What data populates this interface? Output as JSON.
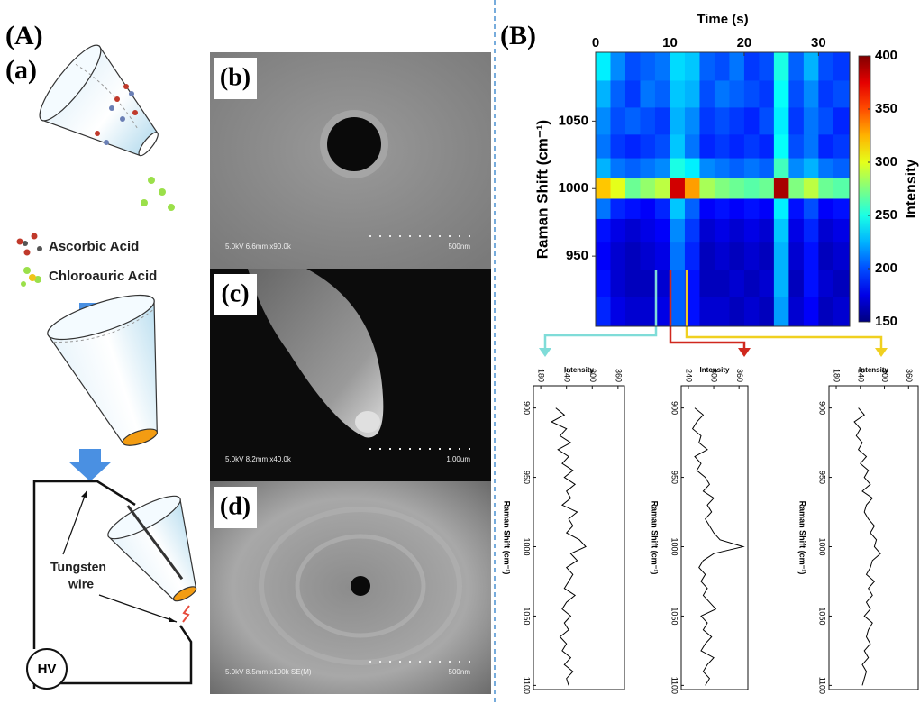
{
  "panel_a": {
    "label": "(A)",
    "sub_label": "(a)",
    "ascorbic": "Ascorbic Acid",
    "chloroauric": "Chloroauric Acid",
    "tungsten": "Tungsten",
    "wire": "wire",
    "hv": "HV"
  },
  "sem": [
    {
      "label": "(b)",
      "caption": "5.0kV 6.6mm x90.0k",
      "scale": "500nm"
    },
    {
      "label": "(c)",
      "caption": "5.0kV 8.2mm x40.0k",
      "scale": "1.00um"
    },
    {
      "label": "(d)",
      "caption": "5.0kV 8.5mm x100k SE(M)",
      "scale": "500nm"
    }
  ],
  "panel_b": {
    "label": "(B)"
  },
  "chart_data": [
    {
      "type": "heatmap",
      "x_label": "Time (s)",
      "y_label": "Raman Shift (cm⁻¹)",
      "colorbar_label": "Intensity",
      "colormap": "jet",
      "x": [
        1,
        3,
        5,
        7,
        9,
        11,
        13,
        15,
        17,
        19,
        21,
        23,
        25,
        27,
        29,
        31,
        33
      ],
      "y": [
        1090,
        1070,
        1050,
        1030,
        1015,
        1000,
        985,
        970,
        950,
        930,
        910
      ],
      "z": [
        [
          240,
          215,
          200,
          205,
          210,
          235,
          230,
          205,
          200,
          210,
          195,
          200,
          250,
          205,
          225,
          200,
          195
        ],
        [
          225,
          205,
          195,
          210,
          205,
          230,
          225,
          200,
          210,
          205,
          200,
          195,
          245,
          200,
          215,
          195,
          200
        ],
        [
          215,
          200,
          205,
          200,
          195,
          225,
          215,
          195,
          200,
          195,
          190,
          200,
          240,
          195,
          210,
          200,
          190
        ],
        [
          210,
          195,
          190,
          195,
          200,
          230,
          210,
          190,
          195,
          190,
          195,
          190,
          245,
          200,
          210,
          190,
          195
        ],
        [
          225,
          210,
          205,
          210,
          215,
          250,
          240,
          215,
          210,
          205,
          210,
          205,
          260,
          215,
          225,
          210,
          205
        ],
        [
          320,
          300,
          270,
          280,
          290,
          380,
          330,
          285,
          275,
          270,
          265,
          270,
          390,
          275,
          290,
          270,
          265
        ],
        [
          210,
          190,
          185,
          180,
          190,
          230,
          205,
          180,
          185,
          180,
          185,
          180,
          240,
          185,
          200,
          180,
          185
        ],
        [
          185,
          175,
          170,
          175,
          180,
          215,
          195,
          170,
          175,
          170,
          175,
          170,
          230,
          175,
          190,
          170,
          175
        ],
        [
          180,
          170,
          165,
          170,
          175,
          210,
          190,
          165,
          170,
          165,
          170,
          165,
          225,
          170,
          185,
          165,
          170
        ],
        [
          185,
          170,
          165,
          165,
          170,
          205,
          185,
          165,
          165,
          170,
          165,
          170,
          225,
          165,
          185,
          170,
          165
        ],
        [
          190,
          175,
          170,
          170,
          175,
          205,
          185,
          170,
          170,
          165,
          170,
          165,
          220,
          170,
          180,
          165,
          170
        ]
      ],
      "xlim": [
        0,
        34.2
      ],
      "ylim": [
        898,
        1101
      ],
      "xticks": [
        0,
        10,
        20,
        30
      ],
      "yticks": [
        950,
        1000,
        1050
      ],
      "zlim": [
        150,
        400
      ],
      "zticks": [
        150,
        200,
        250,
        300,
        350,
        400
      ]
    },
    {
      "type": "line",
      "x_label": "Intensity",
      "y_label": "Raman Shift (cm⁻¹)",
      "y": [
        900,
        905,
        910,
        915,
        920,
        925,
        930,
        935,
        940,
        945,
        950,
        955,
        960,
        965,
        970,
        975,
        980,
        985,
        990,
        995,
        1000,
        1005,
        1010,
        1015,
        1020,
        1025,
        1030,
        1035,
        1040,
        1045,
        1050,
        1055,
        1060,
        1065,
        1070,
        1075,
        1080,
        1085,
        1090,
        1095,
        1100
      ],
      "series": [
        {
          "color": "#000000",
          "values": [
            215,
            235,
            205,
            240,
            225,
            250,
            220,
            245,
            230,
            255,
            235,
            260,
            240,
            250,
            230,
            265,
            245,
            255,
            240,
            270,
            285,
            250,
            265,
            240,
            255,
            245,
            235,
            260,
            240,
            230,
            250,
            235,
            245,
            225,
            240,
            230,
            250,
            235,
            255,
            240,
            245
          ]
        }
      ],
      "xlim": [
        163,
        375
      ],
      "ylim": [
        884,
        1103
      ],
      "xticks": [
        180,
        240,
        300,
        360
      ],
      "yticks": [
        900,
        950,
        1000,
        1050,
        1100
      ]
    },
    {
      "type": "line",
      "x_label": "Intensity",
      "y_label": "Raman Shift (cm⁻¹)",
      "y": [
        900,
        905,
        910,
        915,
        920,
        925,
        930,
        935,
        940,
        945,
        950,
        955,
        960,
        965,
        970,
        975,
        980,
        985,
        990,
        995,
        1000,
        1005,
        1010,
        1015,
        1020,
        1025,
        1030,
        1035,
        1040,
        1045,
        1050,
        1055,
        1060,
        1065,
        1070,
        1075,
        1080,
        1085,
        1090,
        1095,
        1100
      ],
      "series": [
        {
          "color": "#000000",
          "values": [
            255,
            275,
            260,
            250,
            270,
            265,
            285,
            255,
            270,
            260,
            280,
            290,
            275,
            300,
            285,
            295,
            280,
            290,
            300,
            315,
            370,
            300,
            275,
            265,
            280,
            270,
            285,
            275,
            290,
            305,
            270,
            285,
            275,
            295,
            280,
            270,
            300,
            285,
            275,
            290,
            280
          ]
        }
      ],
      "xlim": [
        223,
        381
      ],
      "ylim": [
        884,
        1103
      ],
      "xticks": [
        240,
        300,
        360
      ],
      "yticks": [
        900,
        950,
        1000,
        1050,
        1100
      ]
    },
    {
      "type": "line",
      "x_label": "Intensity",
      "y_label": "Raman Shift (cm⁻¹)",
      "y": [
        900,
        905,
        910,
        915,
        920,
        925,
        930,
        935,
        940,
        945,
        950,
        955,
        960,
        965,
        970,
        975,
        980,
        985,
        990,
        995,
        1000,
        1005,
        1010,
        1015,
        1020,
        1025,
        1030,
        1035,
        1040,
        1045,
        1050,
        1055,
        1060,
        1065,
        1070,
        1075,
        1080,
        1085,
        1090,
        1095,
        1100
      ],
      "series": [
        {
          "color": "#000000",
          "values": [
            235,
            250,
            225,
            240,
            230,
            245,
            235,
            255,
            240,
            260,
            250,
            265,
            245,
            270,
            255,
            250,
            260,
            275,
            265,
            280,
            275,
            290,
            270,
            265,
            255,
            275,
            260,
            270,
            255,
            265,
            250,
            270,
            260,
            255,
            265,
            250,
            260,
            245,
            255,
            250,
            245
          ]
        }
      ],
      "xlim": [
        162,
        384
      ],
      "ylim": [
        884,
        1103
      ],
      "xticks": [
        180,
        240,
        300,
        360
      ],
      "yticks": [
        900,
        950,
        1000,
        1050,
        1100
      ]
    }
  ]
}
